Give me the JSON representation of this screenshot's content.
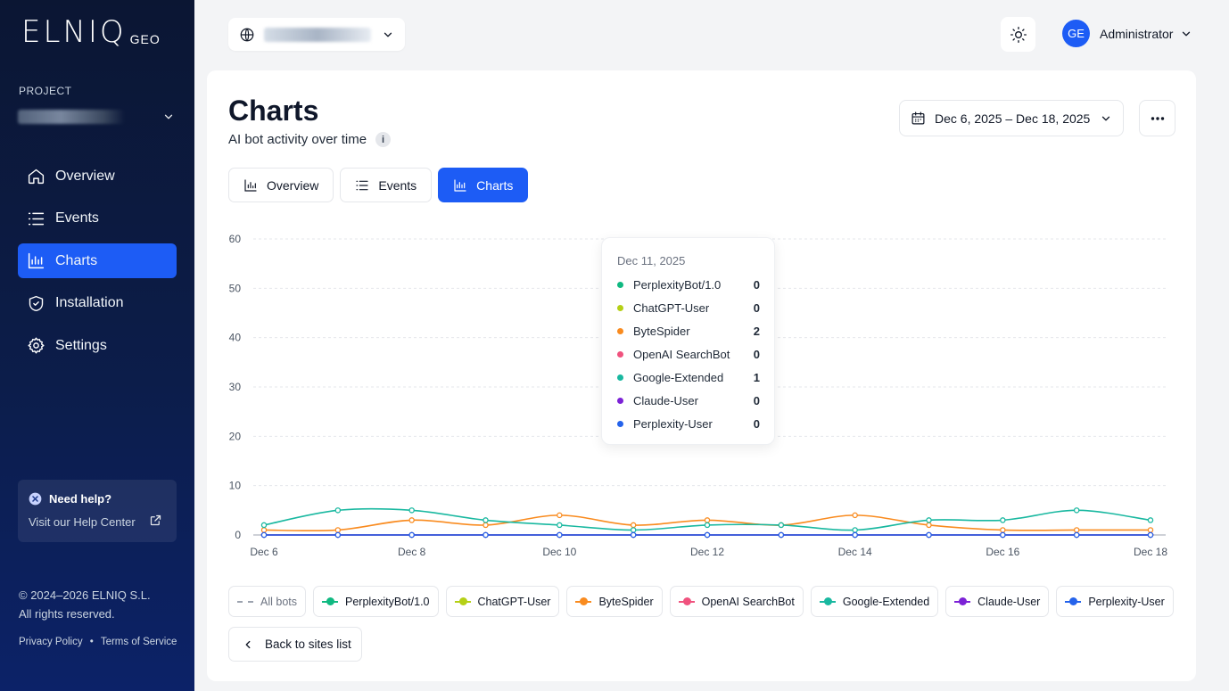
{
  "app": {
    "logo_main": "ELNIQ",
    "logo_sub": "GEO"
  },
  "sidebar": {
    "project_label": "PROJECT",
    "items": [
      {
        "label": "Overview",
        "icon": "home-icon"
      },
      {
        "label": "Events",
        "icon": "list-icon"
      },
      {
        "label": "Charts",
        "icon": "chart-icon",
        "active": true
      },
      {
        "label": "Installation",
        "icon": "shield-icon"
      },
      {
        "label": "Settings",
        "icon": "gear-icon"
      }
    ],
    "help_title": "Need help?",
    "help_link": "Visit our Help Center",
    "copyright_line1": "© 2024–2026 ELNIQ S.L.",
    "copyright_line2": "All rights reserved.",
    "privacy": "Privacy Policy",
    "separator": "•",
    "terms": "Terms of Service"
  },
  "header": {
    "user_initials": "GE",
    "user_name": "Administrator"
  },
  "main": {
    "title": "Charts",
    "subtitle": "AI bot activity over time",
    "info_glyph": "i",
    "date_range": "Dec 6, 2025 – Dec 18, 2025",
    "tabs": [
      {
        "label": "Overview",
        "active": false
      },
      {
        "label": "Events",
        "active": false
      },
      {
        "label": "Charts",
        "active": true
      }
    ],
    "back_label": "Back to sites list"
  },
  "colors": {
    "accent": "#1d5cf5",
    "PerplexityBot/1.0": "#10b981",
    "ChatGPT-User": "#b5d016",
    "ByteSpider": "#f98b1f",
    "OpenAI SearchBot": "#f0527e",
    "Google-Extended": "#19b8a0",
    "Claude-User": "#7c22d6",
    "Perplexity-User": "#2563eb"
  },
  "tooltip": {
    "date": "Dec 11, 2025",
    "rows": [
      {
        "name": "PerplexityBot/1.0",
        "value": "0"
      },
      {
        "name": "ChatGPT-User",
        "value": "0"
      },
      {
        "name": "ByteSpider",
        "value": "2"
      },
      {
        "name": "OpenAI SearchBot",
        "value": "0"
      },
      {
        "name": "Google-Extended",
        "value": "1"
      },
      {
        "name": "Claude-User",
        "value": "0"
      },
      {
        "name": "Perplexity-User",
        "value": "0"
      }
    ]
  },
  "legend": {
    "all_label": "All bots",
    "items": [
      "PerplexityBot/1.0",
      "ChatGPT-User",
      "ByteSpider",
      "OpenAI SearchBot",
      "Google-Extended",
      "Claude-User",
      "Perplexity-User"
    ]
  },
  "chart_data": {
    "type": "line",
    "x": [
      "Dec 6",
      "Dec 7",
      "Dec 8",
      "Dec 9",
      "Dec 10",
      "Dec 11",
      "Dec 12",
      "Dec 13",
      "Dec 14",
      "Dec 15",
      "Dec 16",
      "Dec 17",
      "Dec 18"
    ],
    "x_tick_labels": [
      "Dec 6",
      "Dec 8",
      "Dec 10",
      "Dec 12",
      "Dec 14",
      "Dec 16",
      "Dec 18"
    ],
    "ylim": [
      0,
      60
    ],
    "y_ticks": [
      0,
      10,
      20,
      30,
      40,
      50,
      60
    ],
    "grid": true,
    "series": [
      {
        "name": "PerplexityBot/1.0",
        "values": [
          0,
          0,
          0,
          0,
          0,
          0,
          0,
          0,
          0,
          0,
          0,
          0,
          0
        ]
      },
      {
        "name": "ChatGPT-User",
        "values": [
          0,
          0,
          0,
          0,
          0,
          0,
          0,
          0,
          0,
          0,
          0,
          0,
          0
        ]
      },
      {
        "name": "ByteSpider",
        "values": [
          1,
          1,
          3,
          2,
          4,
          2,
          3,
          2,
          4,
          2,
          1,
          1,
          1
        ]
      },
      {
        "name": "OpenAI SearchBot",
        "values": [
          0,
          0,
          0,
          0,
          0,
          0,
          0,
          0,
          0,
          0,
          0,
          0,
          0
        ]
      },
      {
        "name": "Google-Extended",
        "values": [
          2,
          5,
          5,
          3,
          2,
          1,
          2,
          2,
          1,
          3,
          3,
          5,
          3
        ]
      },
      {
        "name": "Claude-User",
        "values": [
          0,
          0,
          0,
          0,
          0,
          0,
          0,
          0,
          0,
          0,
          0,
          0,
          0
        ]
      },
      {
        "name": "Perplexity-User",
        "values": [
          0,
          0,
          0,
          0,
          0,
          0,
          0,
          0,
          0,
          0,
          0,
          0,
          0
        ]
      }
    ]
  }
}
